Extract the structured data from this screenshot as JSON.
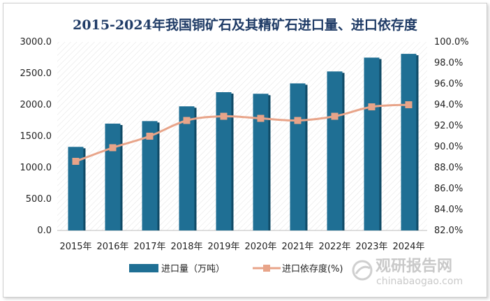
{
  "chart_data": {
    "type": "bar+line",
    "title": "2015-2024年我国铜矿石及其精矿石进口量、进口依存度",
    "categories": [
      "2015年",
      "2016年",
      "2017年",
      "2018年",
      "2019年",
      "2020年",
      "2021年",
      "2022年",
      "2023年",
      "2024年"
    ],
    "series": [
      {
        "name": "进口量（万吨）",
        "type": "bar",
        "axis": "left",
        "color": "#1f6f94",
        "values": [
          1330,
          1700,
          1740,
          1975,
          2200,
          2175,
          2340,
          2530,
          2750,
          2810
        ]
      },
      {
        "name": "进口依存度(%)",
        "type": "line",
        "axis": "right",
        "color": "#e8a489",
        "values": [
          88.6,
          89.9,
          91.0,
          92.5,
          92.9,
          92.7,
          92.5,
          92.9,
          93.8,
          94.0
        ]
      }
    ],
    "y_left": {
      "min": 0,
      "max": 3000,
      "step": 500,
      "ticks": [
        "0.0",
        "500.0",
        "1000.0",
        "1500.0",
        "2000.0",
        "2500.0",
        "3000.0"
      ]
    },
    "y_right": {
      "min": 82,
      "max": 100,
      "step": 2,
      "ticks": [
        "82.0%",
        "84.0%",
        "86.0%",
        "88.0%",
        "90.0%",
        "92.0%",
        "94.0%",
        "96.0%",
        "98.0%",
        "100.0%"
      ]
    },
    "grid": false,
    "legend": "bottom"
  },
  "watermark": {
    "cn": "观研报告网",
    "en": "chinabaogao.com"
  }
}
